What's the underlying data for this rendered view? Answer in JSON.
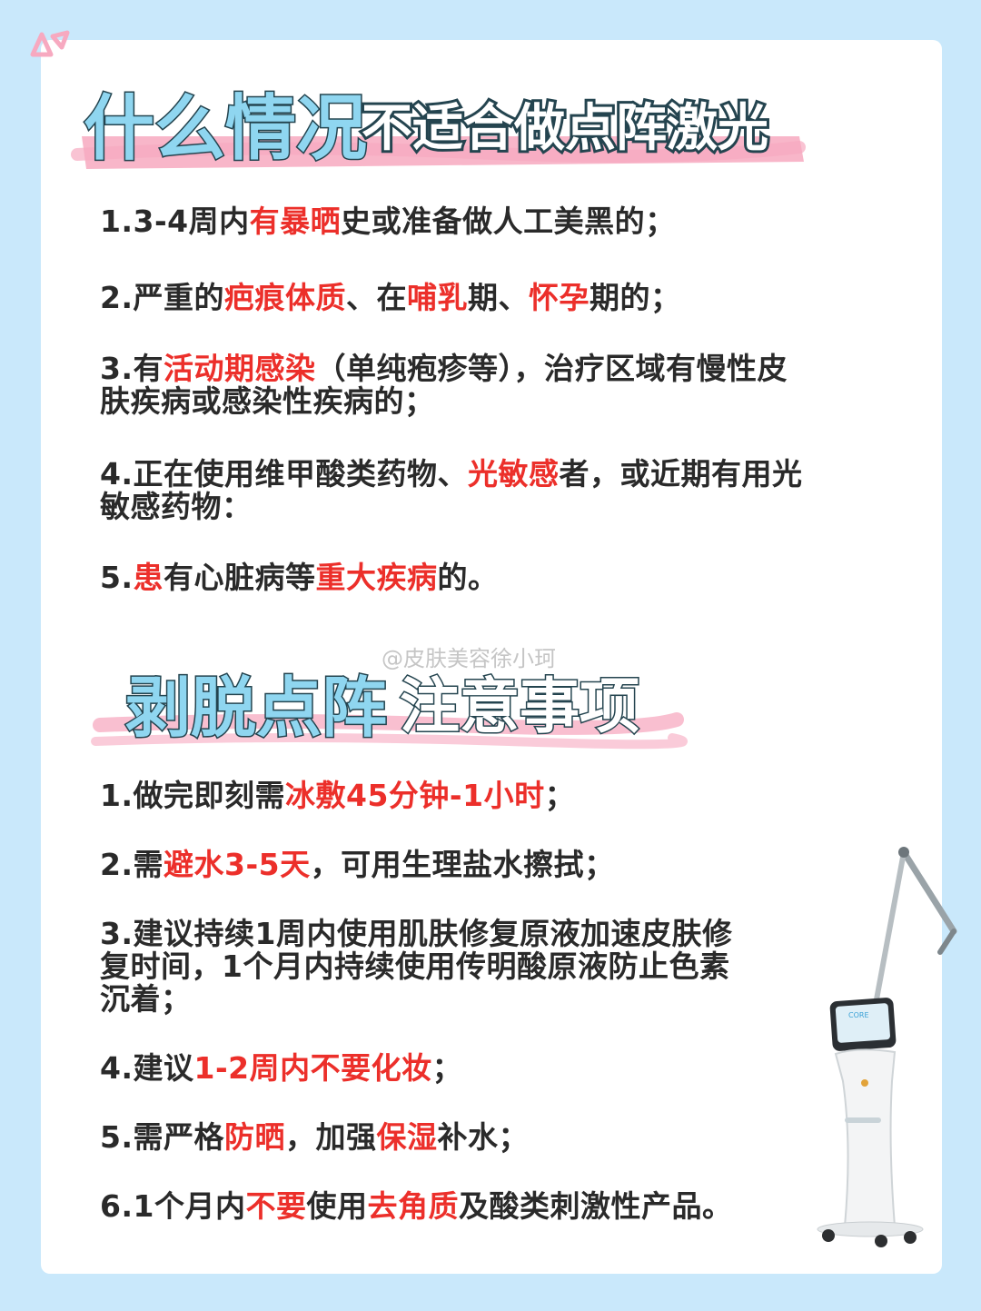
{
  "colors": {
    "background": "#c9e8fb",
    "card": "#ffffff",
    "highlight": "#ec2f2a",
    "text": "#2a2a2a",
    "heading_fill": "#8fd6f0",
    "brush": "#f7a9c0"
  },
  "section1": {
    "title_big": "什么情况",
    "title_small": "不适合做点阵激光",
    "items": [
      [
        {
          "t": "1.3-4周内"
        },
        {
          "t": "有暴晒",
          "hl": true
        },
        {
          "t": "史或准备做人工美黑的；"
        }
      ],
      [
        {
          "t": "2.严重的"
        },
        {
          "t": "疤痕体质",
          "hl": true
        },
        {
          "t": "、在"
        },
        {
          "t": "哺乳",
          "hl": true
        },
        {
          "t": "期、"
        },
        {
          "t": "怀孕",
          "hl": true
        },
        {
          "t": "期的；"
        }
      ],
      [
        {
          "t": "3.有"
        },
        {
          "t": "活动期感染",
          "hl": true
        },
        {
          "t": "（单纯疱疹等），治疗区域有慢性皮\n肤疾病或感染性疾病的；"
        }
      ],
      [
        {
          "t": "4.正在使用维甲酸类药物、"
        },
        {
          "t": "光敏感",
          "hl": true
        },
        {
          "t": "者，或近期有用光\n敏感药物："
        }
      ],
      [
        {
          "t": "5."
        },
        {
          "t": "患",
          "hl": true
        },
        {
          "t": "有心脏病等"
        },
        {
          "t": "重大疾病",
          "hl": true
        },
        {
          "t": "的。"
        }
      ]
    ]
  },
  "watermark": "@皮肤美容徐小珂",
  "section2": {
    "title_part1": "剥脱点阵",
    "title_part2": "注意事项",
    "items": [
      [
        {
          "t": "1.做完即刻需"
        },
        {
          "t": "冰敷45分钟-1小时",
          "hl": true
        },
        {
          "t": "；"
        }
      ],
      [
        {
          "t": "2.需"
        },
        {
          "t": "避水3-5天",
          "hl": true
        },
        {
          "t": "，可用生理盐水擦拭；"
        }
      ],
      [
        {
          "t": "3.建议持续1周内使用肌肤修复原液加速皮肤修\n复时间，1个月内持续使用传明酸原液防止色素\n沉着；"
        }
      ],
      [
        {
          "t": "4.建议"
        },
        {
          "t": "1-2周内不要化妆",
          "hl": true
        },
        {
          "t": "；"
        }
      ],
      [
        {
          "t": "5.需严格"
        },
        {
          "t": "防晒",
          "hl": true
        },
        {
          "t": "，加强"
        },
        {
          "t": "保湿",
          "hl": true
        },
        {
          "t": "补水；"
        }
      ],
      [
        {
          "t": "6.1个月内"
        },
        {
          "t": "不要",
          "hl": true
        },
        {
          "t": "使用"
        },
        {
          "t": "去角质",
          "hl": true
        },
        {
          "t": "及酸类刺激性产品。"
        }
      ]
    ]
  },
  "device": {
    "icon": "laser-device-icon",
    "screen_brand": "CORE"
  }
}
